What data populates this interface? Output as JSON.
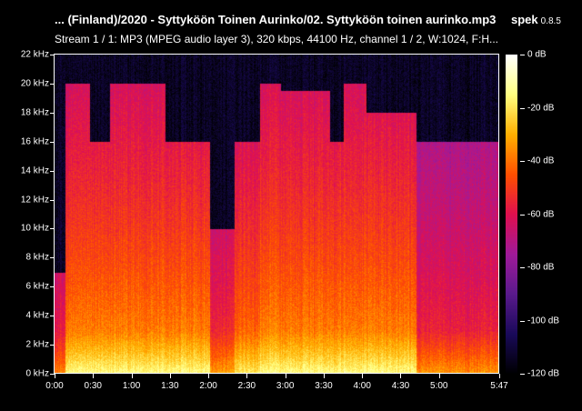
{
  "header": {
    "title": "... (Finland)/2020 - Syttyköön Toinen Aurinko/02. Syttyköön toinen aurinko.mp3",
    "app_name": "spek",
    "app_version": "0.8.5",
    "stream_info": "Stream 1 / 1: MP3 (MPEG audio layer 3), 320 kbps, 44100 Hz, channel 1 / 2, W:1024, F:H..."
  },
  "chart_data": {
    "type": "heatmap",
    "x_ticks": [
      "0:00",
      "0:30",
      "1:00",
      "1:30",
      "2:00",
      "2:30",
      "3:00",
      "3:30",
      "4:00",
      "4:30",
      "5:00",
      "5:47"
    ],
    "x_tick_seconds": [
      0,
      30,
      60,
      90,
      120,
      150,
      180,
      210,
      240,
      270,
      300,
      347
    ],
    "xlim_seconds": [
      0,
      347
    ],
    "y_ticks": [
      "0 kHz",
      "2 kHz",
      "4 kHz",
      "6 kHz",
      "8 kHz",
      "10 kHz",
      "12 kHz",
      "14 kHz",
      "16 kHz",
      "18 kHz",
      "20 kHz",
      "22 kHz"
    ],
    "ylim_khz": [
      0,
      22
    ],
    "colorbar_ticks": [
      "0 dB",
      "-20 dB",
      "-40 dB",
      "-60 dB",
      "-80 dB",
      "-100 dB",
      "-120 dB"
    ],
    "colorbar_range_db": [
      -120,
      0
    ],
    "colormap": [
      "#000000",
      "#1a0a5a",
      "#5a1a8c",
      "#a01a9a",
      "#e01050",
      "#ff5000",
      "#ffb000",
      "#ffff80",
      "#ffffff"
    ],
    "notes_visible": "lowpass cutoff bands near 16 kHz and 20 kHz"
  }
}
